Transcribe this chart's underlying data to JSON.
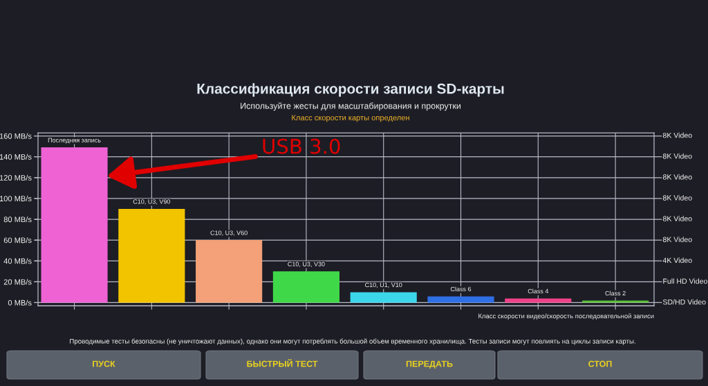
{
  "chart_data": {
    "type": "bar",
    "title": "Классификация скорости записи SD-карты",
    "subtitle": "Используйте жесты для масштабирования и прокрутки",
    "xlabel": "Класс скорости видео/скорость последовательной записи",
    "categories": [
      "Последняя запись",
      "C10, U3, V90",
      "C10, U3, V60",
      "C10, U3, V30",
      "C10, U1, V10",
      "Class 6",
      "Class 4",
      "Class 2"
    ],
    "values": [
      149,
      90,
      60,
      30,
      10,
      6,
      4,
      2
    ],
    "colors": [
      "#ee62d4",
      "#f2c400",
      "#f4a078",
      "#3fd848",
      "#3cd6ea",
      "#2f6fe6",
      "#f0428a",
      "#5cc03c"
    ],
    "ylim": [
      -3,
      163
    ],
    "yticks": [
      {
        "value": 0,
        "label": "0 MB/s"
      },
      {
        "value": 20,
        "label": "20 MB/s"
      },
      {
        "value": 40,
        "label": "40 MB/s"
      },
      {
        "value": 60,
        "label": "60 MB/s"
      },
      {
        "value": 80,
        "label": "80 MB/s"
      },
      {
        "value": 100,
        "label": "100 MB/s"
      },
      {
        "value": 120,
        "label": "120 MB/s"
      },
      {
        "value": 140,
        "label": "140 MB/s"
      },
      {
        "value": 160,
        "label": "160 MB/s"
      }
    ],
    "ref_lines": [
      {
        "axis": "y",
        "value": 0,
        "label": "SD/HD Video"
      },
      {
        "axis": "y",
        "value": 20,
        "label": "Full HD Video"
      },
      {
        "axis": "y",
        "value": 40,
        "label": "4K Video"
      },
      {
        "axis": "y",
        "value": 60,
        "label": "8K Video"
      },
      {
        "axis": "y",
        "value": 80,
        "label": "8K Video"
      },
      {
        "axis": "y",
        "value": 100,
        "label": "8K Video"
      },
      {
        "axis": "y",
        "value": 120,
        "label": "8K Video"
      },
      {
        "axis": "y",
        "value": 140,
        "label": "8K Video"
      },
      {
        "axis": "y",
        "value": 160,
        "label": "8K Video"
      }
    ],
    "grid": "x",
    "annotations": [
      "Класс скорости карты определен",
      "USB 3.0",
      "Проводимые тесты безопасны (не уничтожают данных), однако они могут потреблять большой объем временного хранилища. Тесты записи могут повлиять на циклы записи карты.",
      "ПУСК",
      "БЫСТРЫЙ ТЕСТ",
      "ПЕРЕДАТЬ",
      "СТОП"
    ]
  }
}
